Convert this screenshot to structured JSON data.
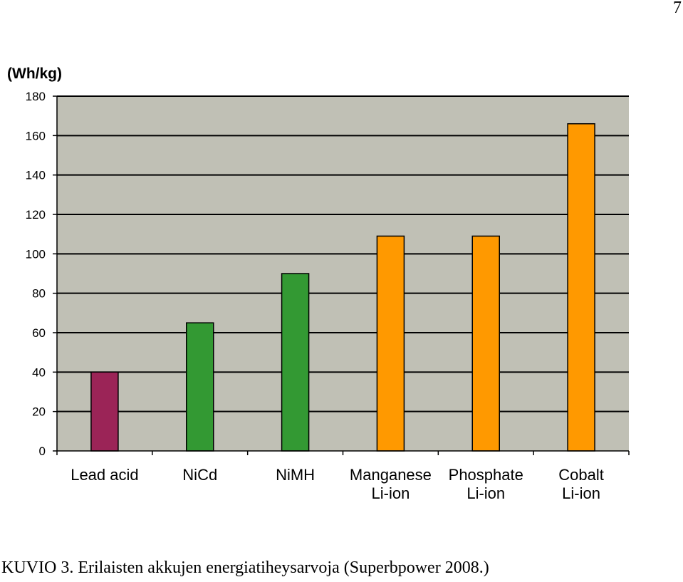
{
  "page": {
    "number": "7"
  },
  "caption": "KUVIO 3. Erilaisten akkujen energiatiheysarvoja (Superbpower 2008.)",
  "chart_data": {
    "type": "bar",
    "title": "",
    "xlabel": "",
    "ylabel": "(Wh/kg)",
    "ylim": [
      0,
      180
    ],
    "yticks": [
      0,
      20,
      40,
      60,
      80,
      100,
      120,
      140,
      160,
      180
    ],
    "grid": true,
    "legend": "none",
    "categories": [
      [
        "Lead acid"
      ],
      [
        "NiCd"
      ],
      [
        "NiMH"
      ],
      [
        "Manganese",
        "Li-ion"
      ],
      [
        "Phosphate",
        "Li-ion"
      ],
      [
        "Cobalt",
        "Li-ion"
      ]
    ],
    "values": [
      40,
      65,
      90,
      109,
      109,
      166
    ],
    "colors": [
      "#9b2457",
      "#339933",
      "#339933",
      "#ff9900",
      "#ff9900",
      "#ff9900"
    ],
    "plot_background": "#c0c0b5"
  }
}
